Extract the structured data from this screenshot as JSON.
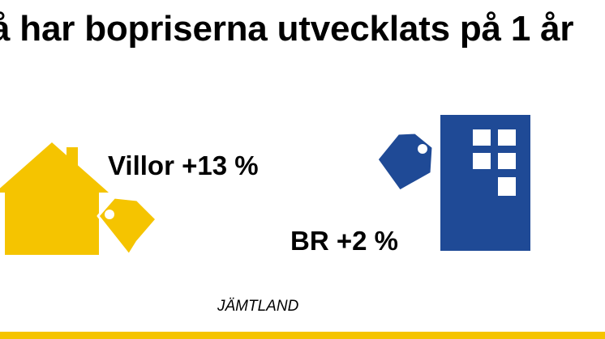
{
  "headline": "å har bopriserna utvecklats på 1 år",
  "villa": {
    "label": "Villor +13 %",
    "icon": "house-icon",
    "color": "#F5C400"
  },
  "apartment": {
    "label": "BR +2 %",
    "icon": "apartment-building-icon",
    "color": "#1F4A96"
  },
  "region": "JÄMTLAND",
  "accent_color": "#F5C400"
}
